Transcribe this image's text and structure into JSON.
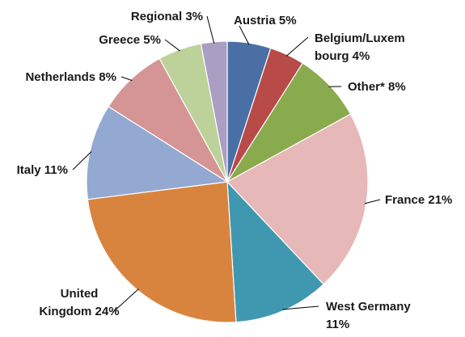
{
  "chart_data": {
    "type": "pie",
    "title": "",
    "unit": "%",
    "slices": [
      {
        "name": "Austria",
        "label_lines": [
          "Austria 5%"
        ],
        "value": 5,
        "color": "#4a6fa5"
      },
      {
        "name": "Belgium/Luxembourg",
        "label_lines": [
          "Belgium/Luxem",
          "bourg 4%"
        ],
        "value": 4,
        "color": "#b84a48"
      },
      {
        "name": "Other*",
        "label_lines": [
          "Other* 8%"
        ],
        "value": 8,
        "color": "#8aaa4e"
      },
      {
        "name": "France",
        "label_lines": [
          "France 21%"
        ],
        "value": 21,
        "color": "#e6b8b8"
      },
      {
        "name": "West Germany",
        "label_lines": [
          "West Germany",
          "11%"
        ],
        "value": 11,
        "color": "#3f98b0"
      },
      {
        "name": "United Kingdom",
        "label_lines": [
          "United",
          "Kingdom 24%"
        ],
        "value": 24,
        "color": "#d9843e"
      },
      {
        "name": "Italy",
        "label_lines": [
          "Italy 11%"
        ],
        "value": 11,
        "color": "#93a9d2"
      },
      {
        "name": "Netherlands",
        "label_lines": [
          "Netherlands 8%"
        ],
        "value": 8,
        "color": "#d49594"
      },
      {
        "name": "Greece",
        "label_lines": [
          "Greece 5%"
        ],
        "value": 5,
        "color": "#bdd19b"
      },
      {
        "name": "Regional",
        "label_lines": [
          "Regional 3%"
        ],
        "value": 3,
        "color": "#ab9ec3"
      }
    ]
  }
}
